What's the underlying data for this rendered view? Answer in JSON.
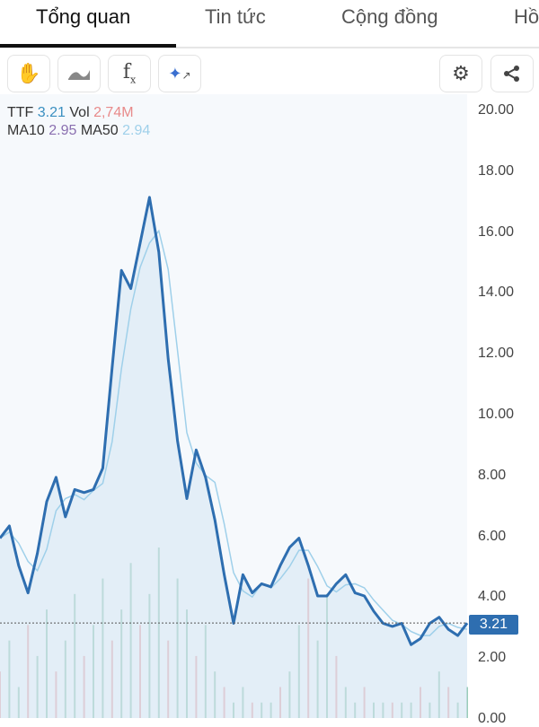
{
  "tabs": [
    {
      "label": "Tổng quan",
      "active": true
    },
    {
      "label": "Tin tức"
    },
    {
      "label": "Cộng đồng"
    },
    {
      "label": "Hồ"
    }
  ],
  "toolbar": {
    "left": [
      "hand-icon",
      "area-chart-icon",
      "function-icon",
      "ai-sparkle-chart-icon"
    ],
    "right": [
      "gear-icon",
      "share-icon"
    ]
  },
  "legend": {
    "symbol": "TTF",
    "price": "3.21",
    "vol_label": "Vol",
    "vol": "2,74M",
    "ma10_label": "MA10",
    "ma10": "2.95",
    "ma50_label": "MA50",
    "ma50": "2.94"
  },
  "colors": {
    "price": "#2e6eb0",
    "ma10": "#8a6fb0",
    "ma50": "#9fd0ea",
    "vol_up": "#6fb89a",
    "vol_down": "#e08a8a",
    "price_label": "#3a8fc0",
    "vol_label": "#e88a8a"
  },
  "last_price_tag": "3.21",
  "chart_data": {
    "type": "line",
    "yticks": [
      "20.00",
      "18.00",
      "16.00",
      "14.00",
      "12.00",
      "10.00",
      "8.00",
      "6.00",
      "4.00",
      "2.00",
      "0.00"
    ],
    "ylim": [
      0,
      20
    ],
    "price": [
      6.0,
      6.4,
      5.1,
      4.2,
      5.5,
      7.2,
      8.0,
      6.7,
      7.6,
      7.5,
      7.6,
      8.3,
      11.6,
      14.8,
      14.2,
      15.7,
      17.2,
      15.4,
      11.9,
      9.2,
      7.3,
      8.9,
      8.0,
      6.6,
      4.8,
      3.2,
      4.8,
      4.2,
      4.5,
      4.4,
      5.1,
      5.7,
      6.0,
      5.1,
      4.1,
      4.1,
      4.5,
      4.8,
      4.2,
      4.1,
      3.6,
      3.2,
      3.1,
      3.2,
      2.5,
      2.7,
      3.2,
      3.4,
      3.0,
      2.8,
      3.21
    ],
    "volume": [
      3,
      5,
      2,
      6,
      4,
      7,
      3,
      5,
      8,
      4,
      6,
      9,
      5,
      7,
      10,
      6,
      8,
      11,
      5,
      9,
      7,
      4,
      6,
      3,
      2,
      1,
      2,
      1,
      1,
      1,
      2,
      3,
      6,
      9,
      5,
      8,
      4,
      2,
      1,
      2,
      1,
      1,
      1,
      1,
      1,
      2,
      1,
      3,
      2,
      1,
      2
    ]
  }
}
